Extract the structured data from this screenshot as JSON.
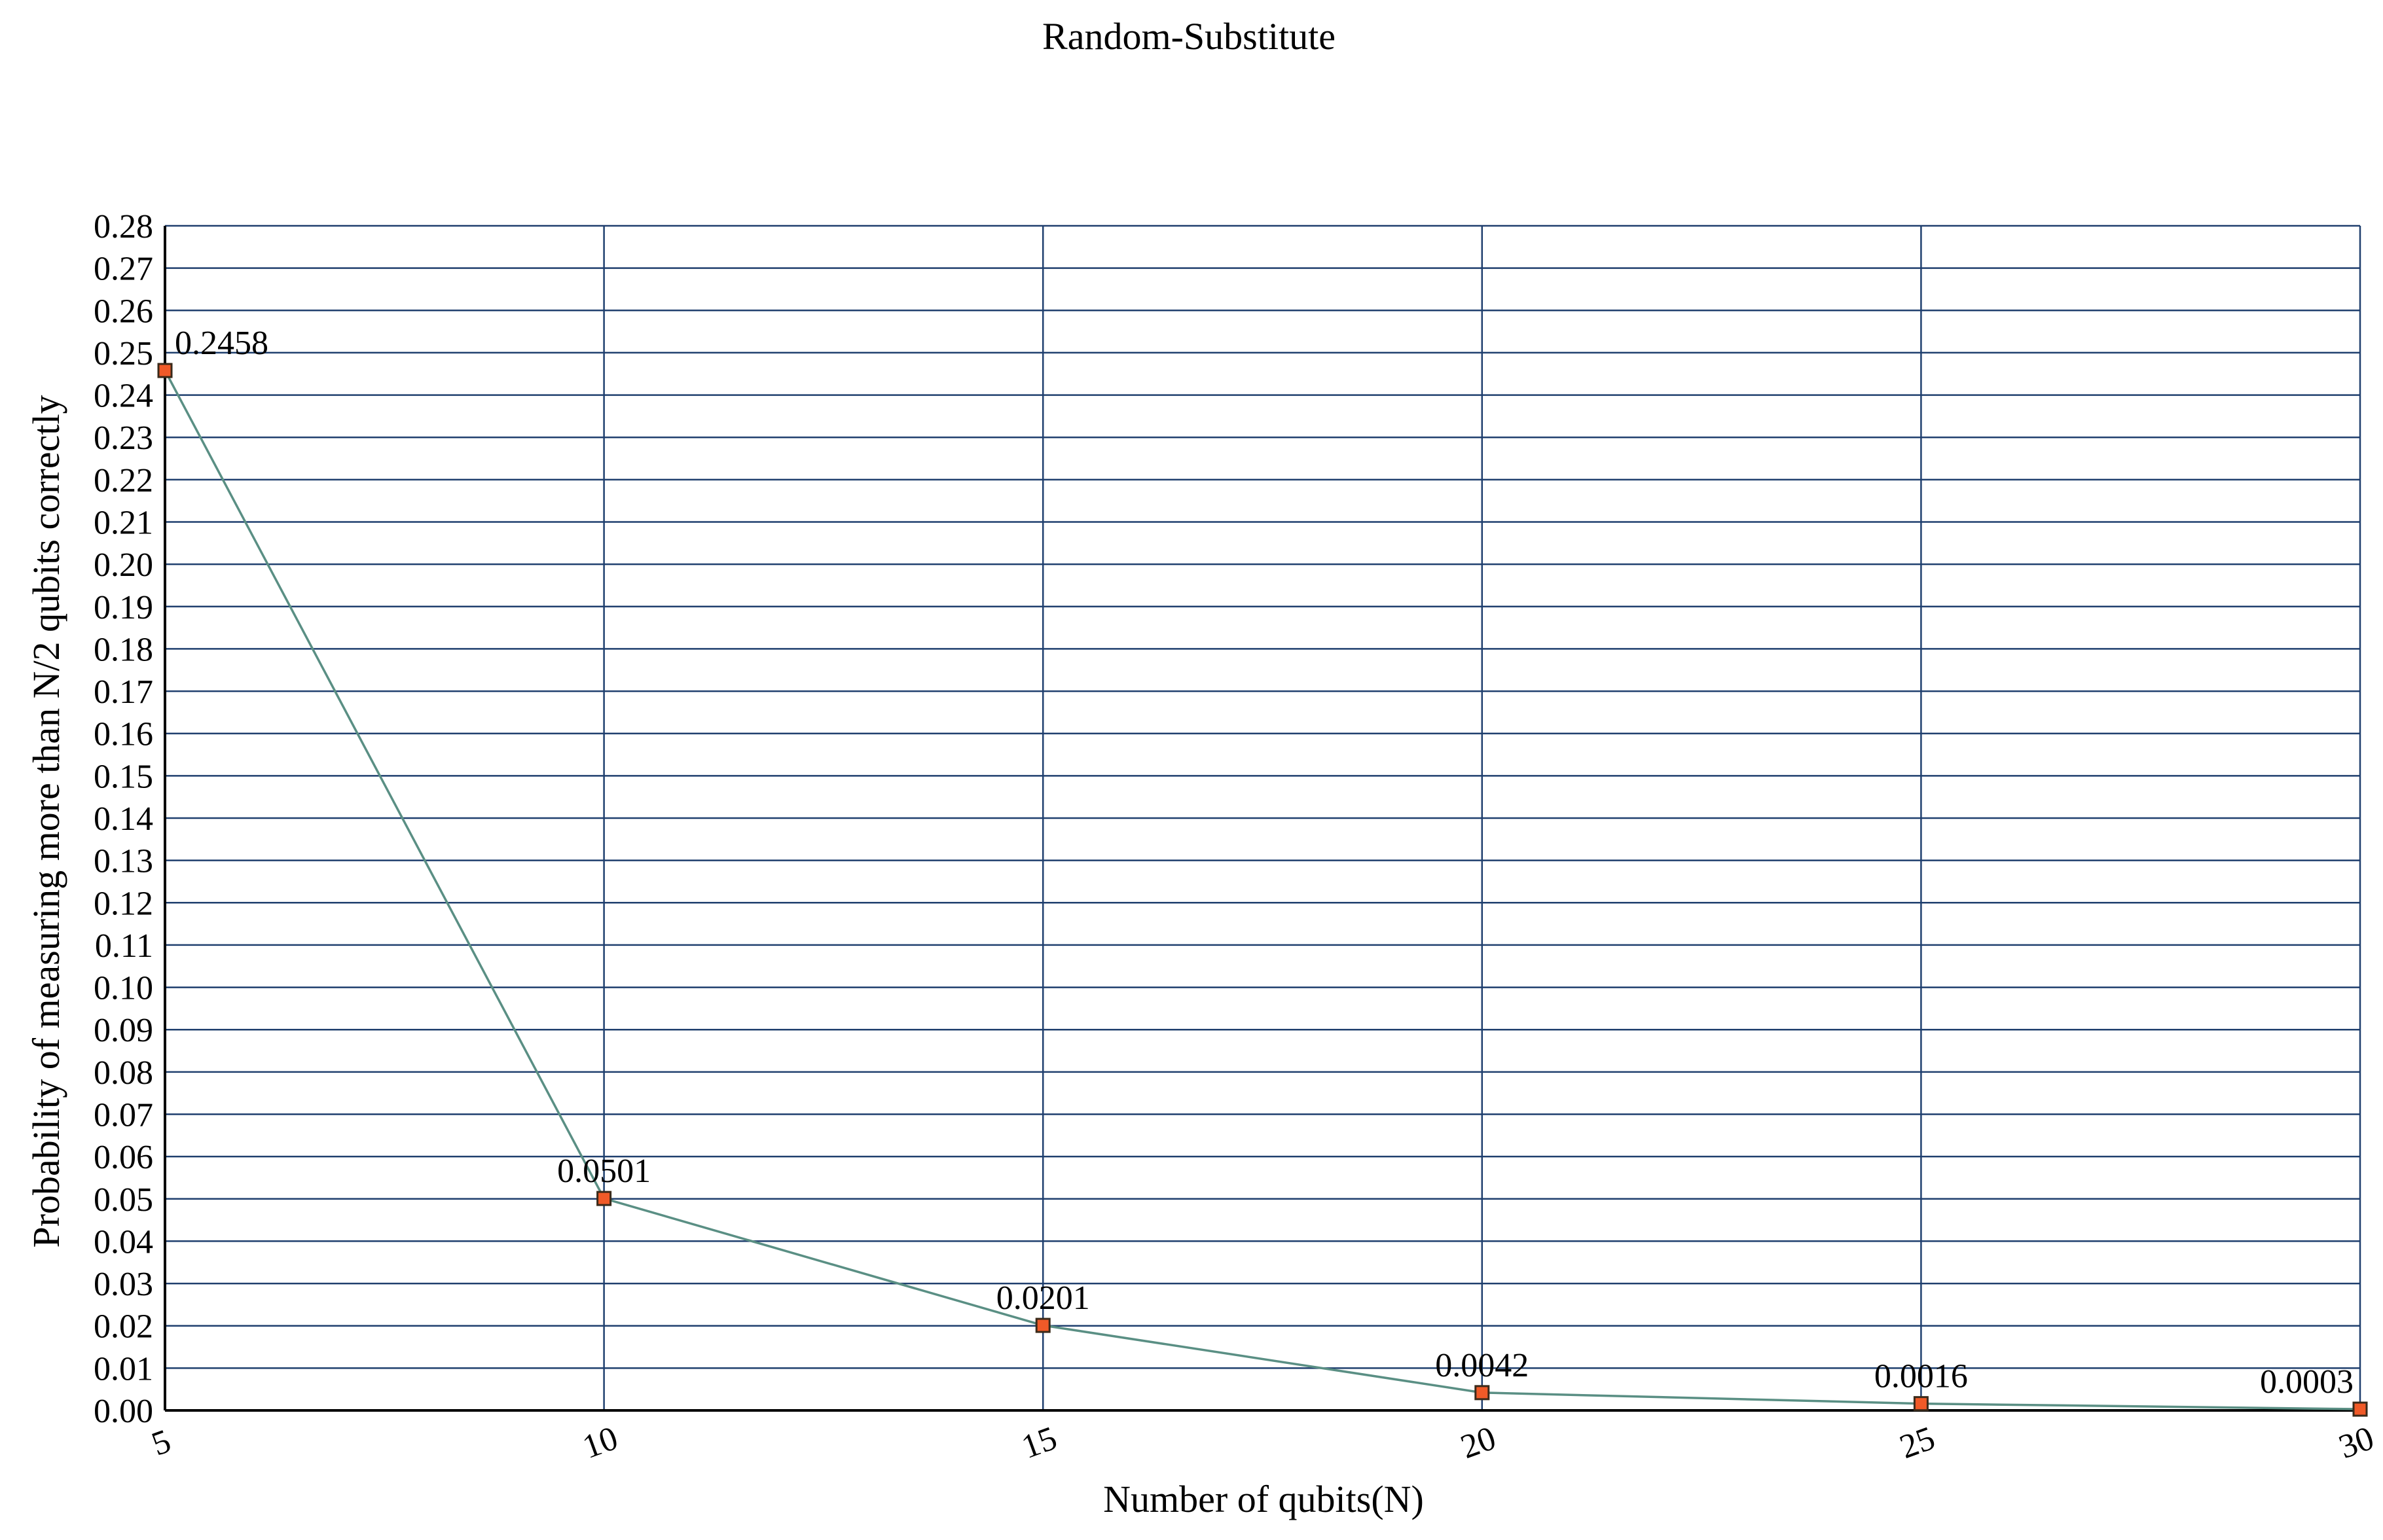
{
  "colors": {
    "grid": "#1f3f6e",
    "line": "#5a8f84",
    "marker_fill": "#f05a28",
    "marker_stroke": "#3a2a1a",
    "axis": "#000000",
    "background": "#ffffff"
  },
  "chart_data": {
    "type": "line",
    "title": "Random-Substitute",
    "xlabel": "Number of qubits(N)",
    "ylabel": "Probability of measuring more than N/2 qubits correctly",
    "x": [
      5,
      10,
      15,
      20,
      25,
      30
    ],
    "x_tick_labels": [
      "5",
      "10",
      "15",
      "20",
      "25",
      "30"
    ],
    "xlim": [
      5,
      30
    ],
    "ylim": [
      0,
      0.28
    ],
    "y_tick_step": 0.01,
    "grid": true,
    "series": [
      {
        "values": [
          0.2458,
          0.0501,
          0.0201,
          0.0042,
          0.0016,
          0.0003
        ],
        "data_labels": [
          "0.2458",
          "0.0501",
          "0.0201",
          "0.0042",
          "0.0016",
          "0.0003"
        ]
      }
    ]
  }
}
